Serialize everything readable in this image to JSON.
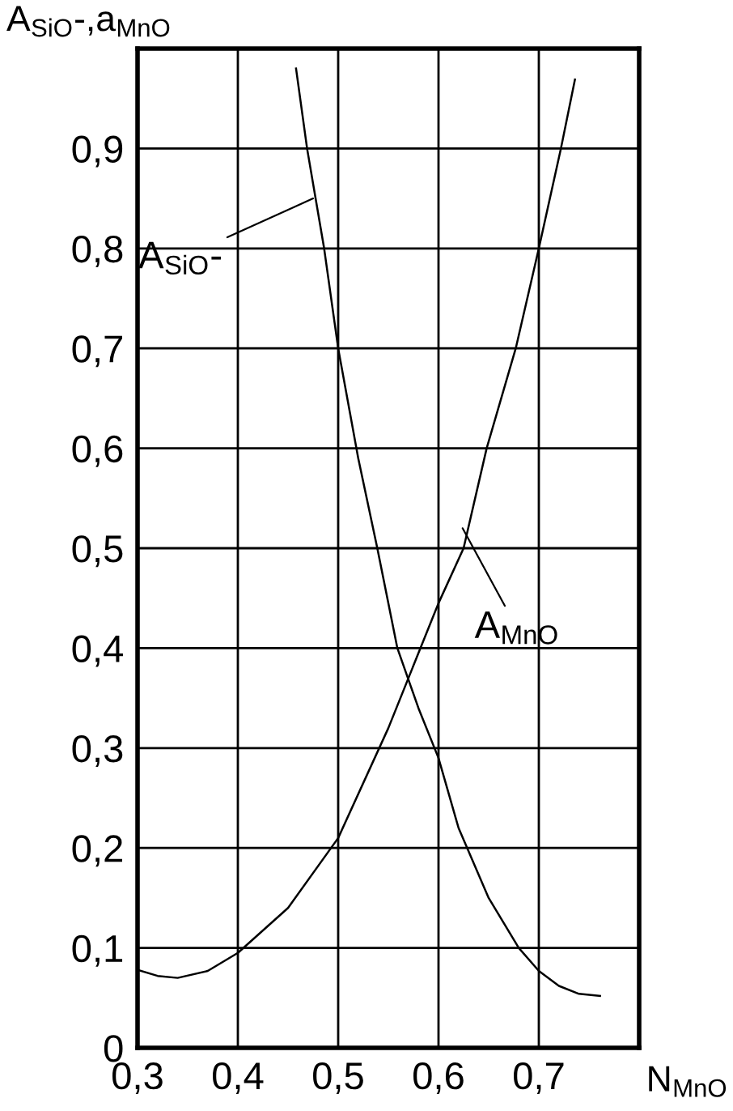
{
  "chart_data": {
    "type": "line",
    "ylabel": "A$_{SiO}$-,a$_{MnO}$",
    "xlabel": "N$_{MnO}$",
    "xlim": [
      0.3,
      0.8
    ],
    "ylim": [
      0,
      1.0
    ],
    "xticks": [
      {
        "value": 0.3,
        "label": "0,3"
      },
      {
        "value": 0.4,
        "label": "0,4"
      },
      {
        "value": 0.5,
        "label": "0,5"
      },
      {
        "value": 0.6,
        "label": "0,6"
      },
      {
        "value": 0.7,
        "label": "0,7"
      }
    ],
    "yticks": [
      {
        "value": 0,
        "label": "0"
      },
      {
        "value": 0.1,
        "label": "0,1"
      },
      {
        "value": 0.2,
        "label": "0,2"
      },
      {
        "value": 0.3,
        "label": "0,3"
      },
      {
        "value": 0.4,
        "label": "0,4"
      },
      {
        "value": 0.5,
        "label": "0,5"
      },
      {
        "value": 0.6,
        "label": "0,6"
      },
      {
        "value": 0.7,
        "label": "0,7"
      },
      {
        "value": 0.8,
        "label": "0,8"
      },
      {
        "value": 0.9,
        "label": "0,9"
      }
    ],
    "grid": true,
    "marker": "none",
    "line_style": "solid",
    "series": [
      {
        "color": "#000000",
        "x": [
          0.458,
          0.469,
          0.486,
          0.5,
          0.52,
          0.539,
          0.559,
          0.58,
          0.6,
          0.62,
          0.65,
          0.68,
          0.7,
          0.72,
          0.74,
          0.761
        ],
        "values": [
          0.98,
          0.9,
          0.8,
          0.7,
          0.59,
          0.5,
          0.4,
          0.34,
          0.29,
          0.22,
          0.15,
          0.1,
          0.077,
          0.062,
          0.054,
          0.052
        ]
      },
      {
        "color": "#000000",
        "x": [
          0.3,
          0.32,
          0.34,
          0.37,
          0.4,
          0.45,
          0.5,
          0.55,
          0.6,
          0.625,
          0.648,
          0.677,
          0.7,
          0.722,
          0.736
        ],
        "values": [
          0.078,
          0.072,
          0.07,
          0.077,
          0.095,
          0.14,
          0.21,
          0.32,
          0.445,
          0.5,
          0.6,
          0.7,
          0.8,
          0.9,
          0.969
        ]
      }
    ],
    "annotations": [
      {
        "text": "A$_{SiO}$-",
        "x": 0.475,
        "y": 0.85
      },
      {
        "text": "A$_{MnO}$",
        "x": 0.624,
        "y": 0.52
      }
    ]
  }
}
